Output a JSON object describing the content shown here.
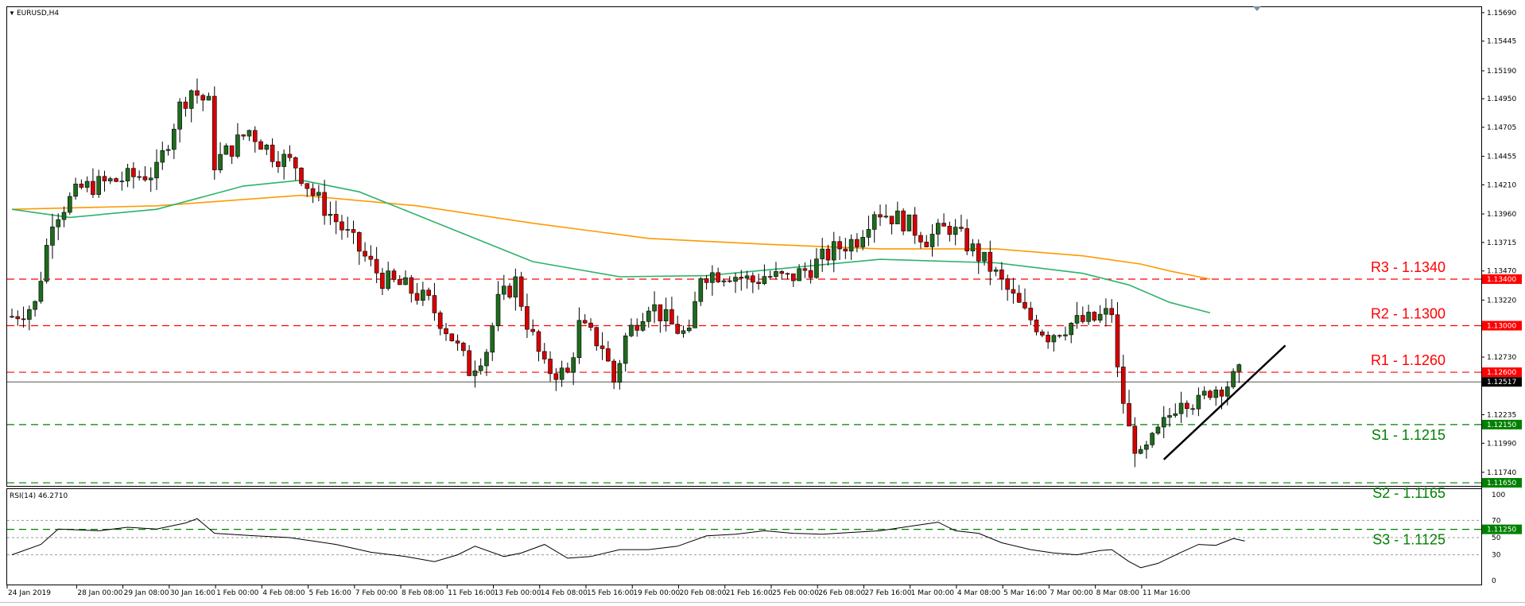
{
  "window": {
    "symbol_title": "EURUSD,H4"
  },
  "chart_data": {
    "type": "candlestick",
    "symbol": "EURUSD",
    "timeframe": "H4",
    "price_axis": {
      "ticks": [
        "1.15690",
        "1.15445",
        "1.15190",
        "1.14950",
        "1.14705",
        "1.14455",
        "1.14210",
        "1.13960",
        "1.13715",
        "1.13470",
        "1.13220",
        "1.12730",
        "1.12235",
        "1.11990",
        "1.11740"
      ],
      "range": [
        1.1163,
        1.1573
      ]
    },
    "current_price": {
      "label": "1.12517",
      "value": 1.12517
    },
    "levels": [
      {
        "name": "R3",
        "text": "R3 - 1.1340",
        "value": 1.134,
        "tag": "1.13400",
        "kind": "resistance",
        "color": "#ff0000"
      },
      {
        "name": "R2",
        "text": "R2 - 1.1300",
        "value": 1.13,
        "tag": "1.13000",
        "kind": "resistance",
        "color": "#ff0000"
      },
      {
        "name": "R1",
        "text": "R1 - 1.1260",
        "value": 1.126,
        "tag": "1.12600",
        "kind": "resistance",
        "color": "#ff0000"
      },
      {
        "name": "S1",
        "text": "S1 - 1.1215",
        "value": 1.1215,
        "tag": "1.12150",
        "kind": "support",
        "color": "#008000"
      },
      {
        "name": "S2",
        "text": "S2 - 1.1165",
        "value": 1.1165,
        "tag": "1.11650",
        "kind": "support",
        "color": "#008000"
      },
      {
        "name": "S3",
        "text": "S3 - 1.1125",
        "value": 1.1125,
        "tag": "1.11250",
        "kind": "support",
        "color": "#008000"
      }
    ],
    "trendline": {
      "from": {
        "bar": 199,
        "price": 1.1185
      },
      "to": {
        "bar": 220,
        "price": 1.1283
      },
      "color": "#000000"
    },
    "moving_averages": [
      {
        "color": "#ff9900",
        "points": [
          [
            0,
            1.14
          ],
          [
            25,
            1.1403
          ],
          [
            50,
            1.1412
          ],
          [
            70,
            1.1403
          ],
          [
            90,
            1.1388
          ],
          [
            110,
            1.1375
          ],
          [
            130,
            1.137
          ],
          [
            150,
            1.1366
          ],
          [
            170,
            1.1366
          ],
          [
            185,
            1.136
          ],
          [
            195,
            1.1353
          ],
          [
            200,
            1.1347
          ],
          [
            207,
            1.134
          ]
        ]
      },
      {
        "color": "#2db36b",
        "points": [
          [
            0,
            1.14
          ],
          [
            10,
            1.1393
          ],
          [
            25,
            1.14
          ],
          [
            40,
            1.142
          ],
          [
            50,
            1.1425
          ],
          [
            60,
            1.1415
          ],
          [
            75,
            1.1385
          ],
          [
            90,
            1.1355
          ],
          [
            105,
            1.1342
          ],
          [
            120,
            1.1343
          ],
          [
            135,
            1.135
          ],
          [
            150,
            1.1357
          ],
          [
            170,
            1.1354
          ],
          [
            185,
            1.1345
          ],
          [
            193,
            1.1335
          ],
          [
            200,
            1.132
          ],
          [
            207,
            1.1311
          ]
        ]
      }
    ],
    "candle_colors": {
      "up": "#1e6b1e",
      "down": "#d80000"
    },
    "price_path": [
      [
        0,
        1.1308
      ],
      [
        4,
        1.1318
      ],
      [
        7,
        1.1393
      ],
      [
        12,
        1.1418
      ],
      [
        20,
        1.1427
      ],
      [
        25,
        1.1432
      ],
      [
        29,
        1.1488
      ],
      [
        31,
        1.1503
      ],
      [
        34,
        1.149
      ],
      [
        35,
        1.144
      ],
      [
        38,
        1.1453
      ],
      [
        41,
        1.1468
      ],
      [
        45,
        1.1448
      ],
      [
        49,
        1.1438
      ],
      [
        52,
        1.1413
      ],
      [
        56,
        1.139
      ],
      [
        60,
        1.1365
      ],
      [
        64,
        1.134
      ],
      [
        68,
        1.1333
      ],
      [
        72,
        1.132
      ],
      [
        76,
        1.129
      ],
      [
        79,
        1.1262
      ],
      [
        82,
        1.128
      ],
      [
        84,
        1.132
      ],
      [
        87,
        1.1338
      ],
      [
        89,
        1.1303
      ],
      [
        92,
        1.1263
      ],
      [
        96,
        1.1258
      ],
      [
        98,
        1.13
      ],
      [
        102,
        1.1283
      ],
      [
        104,
        1.1252
      ],
      [
        106,
        1.129
      ],
      [
        110,
        1.132
      ],
      [
        114,
        1.13
      ],
      [
        117,
        1.129
      ],
      [
        119,
        1.1345
      ],
      [
        124,
        1.1345
      ],
      [
        128,
        1.1338
      ],
      [
        130,
        1.1343
      ],
      [
        134,
        1.134
      ],
      [
        138,
        1.135
      ],
      [
        142,
        1.1365
      ],
      [
        146,
        1.1375
      ],
      [
        149,
        1.14
      ],
      [
        154,
        1.139
      ],
      [
        158,
        1.1375
      ],
      [
        162,
        1.1385
      ],
      [
        165,
        1.137
      ],
      [
        169,
        1.135
      ],
      [
        172,
        1.133
      ],
      [
        175,
        1.131
      ],
      [
        179,
        1.1292
      ],
      [
        183,
        1.1302
      ],
      [
        187,
        1.1305
      ],
      [
        190,
        1.1312
      ],
      [
        191,
        1.126
      ],
      [
        193,
        1.121
      ],
      [
        195,
        1.1185
      ],
      [
        197,
        1.12
      ],
      [
        199,
        1.1215
      ],
      [
        202,
        1.124
      ],
      [
        205,
        1.1233
      ],
      [
        207,
        1.1245
      ],
      [
        210,
        1.125
      ],
      [
        212,
        1.1258
      ]
    ],
    "rsi": {
      "label": "RSI(14) 46.2710",
      "period": 14,
      "value": 46.271,
      "ticks": [
        "100",
        "70",
        "50",
        "30",
        "0"
      ],
      "levels": [
        70,
        50,
        30
      ],
      "range": [
        0,
        100
      ],
      "color": "#000000",
      "path": [
        [
          0,
          30
        ],
        [
          5,
          42
        ],
        [
          8,
          60
        ],
        [
          15,
          58
        ],
        [
          20,
          62
        ],
        [
          25,
          60
        ],
        [
          30,
          67
        ],
        [
          32,
          72
        ],
        [
          35,
          55
        ],
        [
          42,
          52
        ],
        [
          48,
          50
        ],
        [
          52,
          46
        ],
        [
          56,
          42
        ],
        [
          62,
          33
        ],
        [
          68,
          28
        ],
        [
          73,
          22
        ],
        [
          77,
          30
        ],
        [
          80,
          40
        ],
        [
          85,
          28
        ],
        [
          88,
          32
        ],
        [
          92,
          42
        ],
        [
          96,
          26
        ],
        [
          100,
          28
        ],
        [
          105,
          36
        ],
        [
          110,
          36
        ],
        [
          115,
          40
        ],
        [
          120,
          52
        ],
        [
          125,
          54
        ],
        [
          130,
          58
        ],
        [
          135,
          55
        ],
        [
          140,
          54
        ],
        [
          145,
          56
        ],
        [
          150,
          58
        ],
        [
          154,
          62
        ],
        [
          158,
          66
        ],
        [
          160,
          68
        ],
        [
          163,
          58
        ],
        [
          167,
          55
        ],
        [
          171,
          44
        ],
        [
          176,
          36
        ],
        [
          180,
          32
        ],
        [
          184,
          30
        ],
        [
          188,
          35
        ],
        [
          190,
          36
        ],
        [
          193,
          22
        ],
        [
          195,
          15
        ],
        [
          198,
          20
        ],
        [
          202,
          33
        ],
        [
          205,
          42
        ],
        [
          208,
          41
        ],
        [
          211,
          49
        ],
        [
          213,
          46
        ]
      ]
    },
    "time_axis": {
      "labels": [
        {
          "text": "24 Jan 2019",
          "bar": 0
        },
        {
          "text": "28 Jan 00:00",
          "bar": 12
        },
        {
          "text": "29 Jan 08:00",
          "bar": 20
        },
        {
          "text": "30 Jan 16:00",
          "bar": 28
        },
        {
          "text": "1 Feb 00:00",
          "bar": 36
        },
        {
          "text": "4 Feb 08:00",
          "bar": 44
        },
        {
          "text": "5 Feb 16:00",
          "bar": 52
        },
        {
          "text": "7 Feb 00:00",
          "bar": 60
        },
        {
          "text": "8 Feb 08:00",
          "bar": 68
        },
        {
          "text": "11 Feb 16:00",
          "bar": 76
        },
        {
          "text": "13 Feb 00:00",
          "bar": 84
        },
        {
          "text": "14 Feb 08:00",
          "bar": 92
        },
        {
          "text": "15 Feb 16:00",
          "bar": 100
        },
        {
          "text": "19 Feb 00:00",
          "bar": 108
        },
        {
          "text": "20 Feb 08:00",
          "bar": 116
        },
        {
          "text": "21 Feb 16:00",
          "bar": 124
        },
        {
          "text": "25 Feb 00:00",
          "bar": 132
        },
        {
          "text": "26 Feb 08:00",
          "bar": 140
        },
        {
          "text": "27 Feb 16:00",
          "bar": 148
        },
        {
          "text": "1 Mar 00:00",
          "bar": 156
        },
        {
          "text": "4 Mar 08:00",
          "bar": 164
        },
        {
          "text": "5 Mar 16:00",
          "bar": 172
        },
        {
          "text": "7 Mar 00:00",
          "bar": 180
        },
        {
          "text": "8 Mar 08:00",
          "bar": 188
        },
        {
          "text": "11 Mar 16:00",
          "bar": 196
        }
      ]
    }
  }
}
